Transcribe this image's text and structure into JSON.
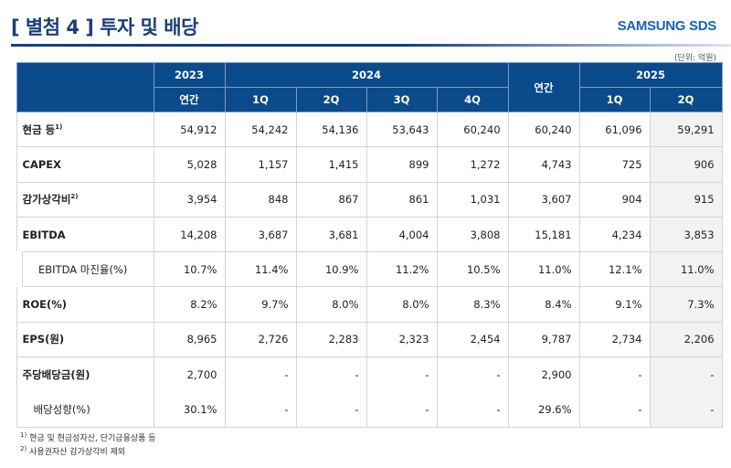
{
  "header": {
    "title": "[ 별첨 4 ]  투자 및 배당",
    "logo": "SAMSUNG SDS",
    "unit": "(단위: 억원)"
  },
  "table": {
    "years": [
      "2023",
      "2024",
      "2025"
    ],
    "subheaders": [
      "연간",
      "1Q",
      "2Q",
      "3Q",
      "4Q",
      "연간",
      "1Q",
      "2Q"
    ],
    "rows": [
      {
        "label": "현금 등",
        "sup": "1)",
        "values": [
          "54,912",
          "54,242",
          "54,136",
          "53,643",
          "60,240",
          "60,240",
          "61,096",
          "59,291"
        ]
      },
      {
        "label": "CAPEX",
        "sup": "",
        "values": [
          "5,028",
          "1,157",
          "1,415",
          "899",
          "1,272",
          "4,743",
          "725",
          "906"
        ]
      },
      {
        "label": "감가상각비",
        "sup": "2)",
        "values": [
          "3,954",
          "848",
          "867",
          "861",
          "1,031",
          "3,607",
          "904",
          "915"
        ]
      },
      {
        "label": "EBITDA",
        "sup": "",
        "values": [
          "14,208",
          "3,687",
          "3,681",
          "4,004",
          "3,808",
          "15,181",
          "4,234",
          "3,853"
        ]
      },
      {
        "label": "EBITDA 마진율(%)",
        "sup": "",
        "values": [
          "10.7%",
          "11.4%",
          "10.9%",
          "11.2%",
          "10.5%",
          "11.0%",
          "12.1%",
          "11.0%"
        ]
      },
      {
        "label": "ROE(%)",
        "sup": "",
        "values": [
          "8.2%",
          "9.7%",
          "8.0%",
          "8.0%",
          "8.3%",
          "8.4%",
          "9.1%",
          "7.3%"
        ]
      },
      {
        "label": "EPS(원)",
        "sup": "",
        "values": [
          "8,965",
          "2,726",
          "2,283",
          "2,323",
          "2,454",
          "9,787",
          "2,734",
          "2,206"
        ]
      },
      {
        "label": "주당배당금(원)",
        "sup": "",
        "values": [
          "2,700",
          "-",
          "-",
          "-",
          "-",
          "2,900",
          "-",
          "-"
        ]
      },
      {
        "label": "배당성향(%)",
        "sup": "",
        "values": [
          "30.1%",
          "-",
          "-",
          "-",
          "-",
          "29.6%",
          "-",
          "-"
        ]
      }
    ]
  },
  "footnotes": [
    {
      "mark": "1)",
      "text": "현금 및 현금성자산, 단기금융상품 등"
    },
    {
      "mark": "2)",
      "text": "사용권자산 감가상각비 제외"
    }
  ]
}
